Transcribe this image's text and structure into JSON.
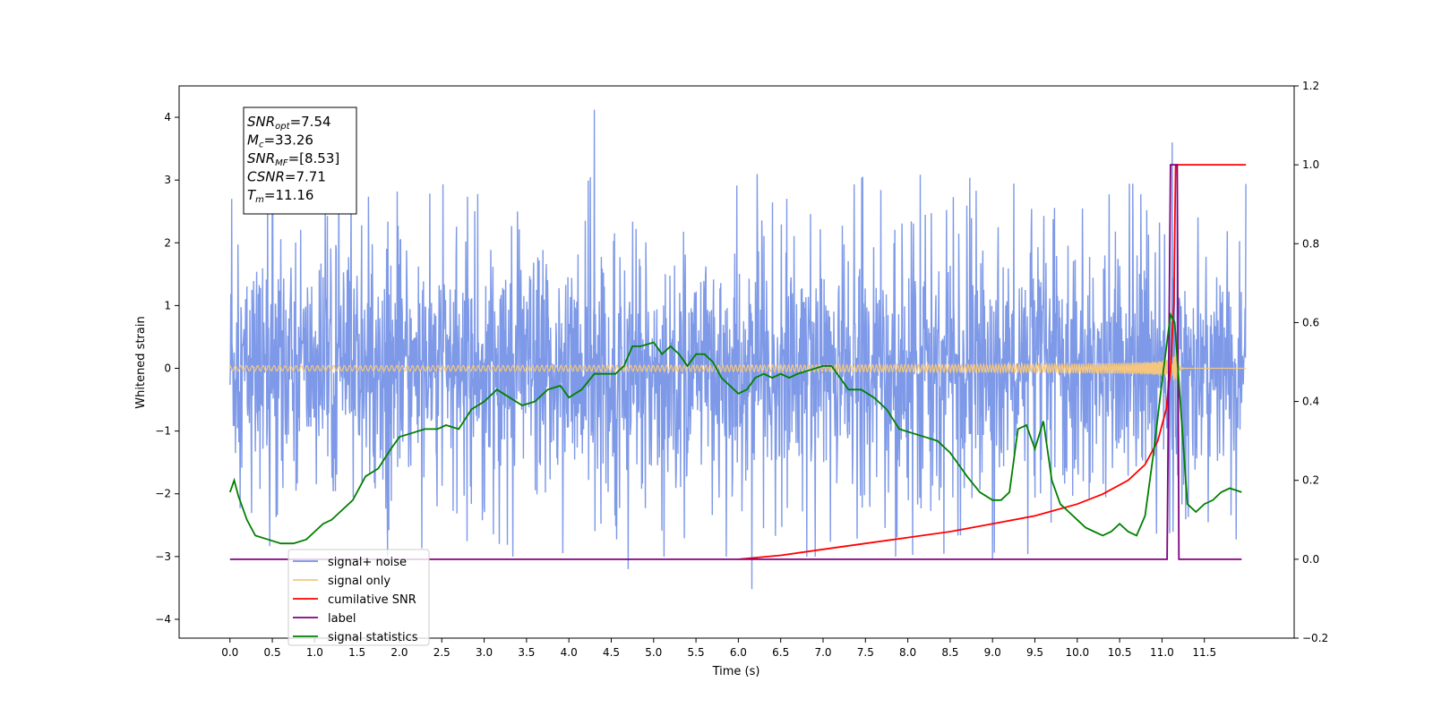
{
  "chart_data": {
    "type": "line",
    "xlabel": "Time (s)",
    "ylabel_left": "Whitened strain",
    "ylabel_right": "",
    "xlim": [
      -0.6,
      12.56
    ],
    "ylim_left": [
      -4.3,
      4.5
    ],
    "ylim_right": [
      -0.2,
      1.2
    ],
    "x_ticks": [
      0.0,
      0.5,
      1.0,
      1.5,
      2.0,
      2.5,
      3.0,
      3.5,
      4.0,
      4.5,
      5.0,
      5.5,
      6.0,
      6.5,
      7.0,
      7.5,
      8.0,
      8.5,
      9.0,
      9.5,
      10.0,
      10.5,
      11.0,
      11.5
    ],
    "x_tick_labels": [
      "0.0",
      "0.5",
      "1.0",
      "1.5",
      "2.0",
      "2.5",
      "3.0",
      "3.5",
      "4.0",
      "4.5",
      "5.0",
      "5.5",
      "6.0",
      "6.5",
      "7.0",
      "7.5",
      "8.0",
      "8.5",
      "9.0",
      "9.5",
      "10.0",
      "10.5",
      "11.0",
      "11.5"
    ],
    "y_left_ticks": [
      4,
      3,
      2,
      1,
      0,
      -1,
      -2,
      -3,
      -4
    ],
    "y_left_tick_labels": [
      "4",
      "3",
      "2",
      "1",
      "0",
      "−1",
      "−2",
      "−3",
      "−4"
    ],
    "y_right_ticks": [
      1.2,
      1.0,
      0.8,
      0.6,
      0.4,
      0.2,
      0.0,
      -0.2
    ],
    "y_right_tick_labels": [
      "1.2",
      "1.0",
      "0.8",
      "0.6",
      "0.4",
      "0.2",
      "0.0",
      "−0.2"
    ],
    "grid": false,
    "legend_position": "lower-left",
    "annotation": {
      "lines": [
        {
          "base": "SNR",
          "sub": "opt",
          "rest": "=7.54"
        },
        {
          "base": "M",
          "sub": "c",
          "rest": "=33.26"
        },
        {
          "base": "SNR",
          "sub": "MF",
          "rest": "=[8.53]"
        },
        {
          "base": "CSNR",
          "sub": "",
          "rest": "=7.71"
        },
        {
          "base": "T",
          "sub": "m",
          "rest": "=11.16"
        }
      ]
    },
    "series": [
      {
        "name": "signal+ noise",
        "color": "#7793e6",
        "axis": "left",
        "description_values": {
          "t_start": 0.0,
          "t_end": 11.99,
          "approx_band": [
            -2.3,
            2.4
          ],
          "peak_max": 4.12,
          "peak_min": -3.52
        }
      },
      {
        "name": "signal only",
        "color": "#f5c77e",
        "axis": "left",
        "description_values": {
          "t_start": 0.0,
          "t_end": 11.99,
          "merger_time": 11.16,
          "peak_amplitude": 1.1
        }
      },
      {
        "name": "cumilative SNR",
        "color": "#ff0000",
        "axis": "right",
        "x": [
          6.0,
          6.5,
          7.0,
          7.5,
          8.0,
          8.5,
          9.0,
          9.5,
          10.0,
          10.3,
          10.6,
          10.8,
          10.95,
          11.05,
          11.1,
          11.14,
          11.16,
          11.2,
          11.6,
          11.99
        ],
        "y": [
          0.0,
          0.01,
          0.025,
          0.04,
          0.055,
          0.07,
          0.09,
          0.11,
          0.14,
          0.165,
          0.2,
          0.24,
          0.3,
          0.38,
          0.48,
          0.65,
          1.0,
          1.0,
          1.0,
          1.0
        ]
      },
      {
        "name": "label",
        "color": "#800080",
        "axis": "right",
        "x": [
          0.0,
          11.06,
          11.1,
          11.12,
          11.18,
          11.2,
          11.94
        ],
        "y": [
          0.0,
          0.0,
          1.0,
          1.0,
          1.0,
          0.0,
          0.0
        ]
      },
      {
        "name": "signal statistics",
        "color": "#008000",
        "axis": "right",
        "x": [
          0.0,
          0.05,
          0.1,
          0.2,
          0.3,
          0.45,
          0.6,
          0.75,
          0.9,
          1.0,
          1.1,
          1.2,
          1.3,
          1.45,
          1.6,
          1.75,
          1.9,
          2.0,
          2.15,
          2.3,
          2.45,
          2.55,
          2.7,
          2.85,
          3.0,
          3.15,
          3.3,
          3.45,
          3.6,
          3.75,
          3.9,
          4.0,
          4.15,
          4.3,
          4.45,
          4.55,
          4.65,
          4.75,
          4.85,
          5.0,
          5.1,
          5.2,
          5.3,
          5.4,
          5.5,
          5.6,
          5.7,
          5.8,
          5.9,
          6.0,
          6.1,
          6.2,
          6.3,
          6.4,
          6.5,
          6.6,
          6.7,
          6.85,
          7.0,
          7.1,
          7.2,
          7.3,
          7.45,
          7.6,
          7.75,
          7.9,
          8.05,
          8.2,
          8.35,
          8.5,
          8.6,
          8.7,
          8.85,
          9.0,
          9.1,
          9.2,
          9.3,
          9.4,
          9.5,
          9.6,
          9.7,
          9.8,
          9.9,
          10.0,
          10.1,
          10.2,
          10.3,
          10.4,
          10.5,
          10.6,
          10.7,
          10.8,
          10.9,
          11.0,
          11.1,
          11.15,
          11.2,
          11.3,
          11.4,
          11.5,
          11.6,
          11.7,
          11.8,
          11.94
        ],
        "y": [
          0.17,
          0.2,
          0.16,
          0.1,
          0.06,
          0.05,
          0.04,
          0.04,
          0.05,
          0.07,
          0.09,
          0.1,
          0.12,
          0.15,
          0.21,
          0.23,
          0.28,
          0.31,
          0.32,
          0.33,
          0.33,
          0.34,
          0.33,
          0.38,
          0.4,
          0.43,
          0.41,
          0.39,
          0.4,
          0.43,
          0.44,
          0.41,
          0.43,
          0.47,
          0.47,
          0.47,
          0.49,
          0.54,
          0.54,
          0.55,
          0.52,
          0.54,
          0.52,
          0.49,
          0.52,
          0.52,
          0.5,
          0.46,
          0.44,
          0.42,
          0.43,
          0.46,
          0.47,
          0.46,
          0.47,
          0.46,
          0.47,
          0.48,
          0.49,
          0.49,
          0.46,
          0.43,
          0.43,
          0.41,
          0.38,
          0.33,
          0.32,
          0.31,
          0.3,
          0.27,
          0.24,
          0.21,
          0.17,
          0.15,
          0.15,
          0.17,
          0.33,
          0.34,
          0.28,
          0.35,
          0.2,
          0.14,
          0.12,
          0.1,
          0.08,
          0.07,
          0.06,
          0.07,
          0.09,
          0.07,
          0.06,
          0.11,
          0.27,
          0.45,
          0.62,
          0.6,
          0.45,
          0.14,
          0.12,
          0.14,
          0.15,
          0.17,
          0.18,
          0.17
        ]
      }
    ]
  }
}
